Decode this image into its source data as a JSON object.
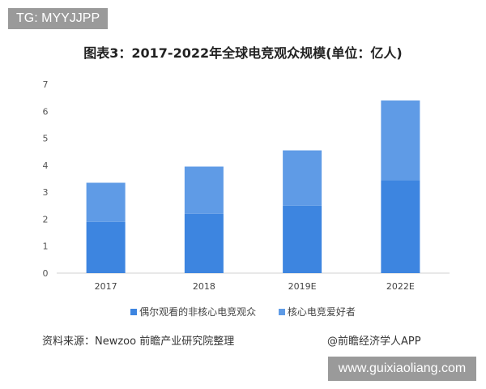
{
  "watermark_top": "TG: MYYJJPP",
  "watermark_bottom": "www.guixiaoliang.com",
  "source": "资料来源：Newzoo 前瞻产业研究院整理",
  "brand": "@前瞻经济学人APP",
  "chart_data": {
    "type": "bar",
    "stacked": true,
    "title": "图表3：2017-2022年全球电竞观众规模(单位：亿人)",
    "categories": [
      "2017",
      "2018",
      "2019E",
      "2022E"
    ],
    "series": [
      {
        "name": "偶尔观看的非核心电竞观众",
        "values": [
          1.9,
          2.2,
          2.5,
          3.45
        ],
        "color": "#3d85e0"
      },
      {
        "name": "核心电竞爱好者",
        "values": [
          1.45,
          1.75,
          2.05,
          2.95
        ],
        "color": "#5f9be6"
      }
    ],
    "ylim": [
      0,
      7
    ],
    "yticks": [
      0,
      1,
      2,
      3,
      4,
      5,
      6,
      7
    ],
    "grid": false,
    "legend": "bottom"
  }
}
